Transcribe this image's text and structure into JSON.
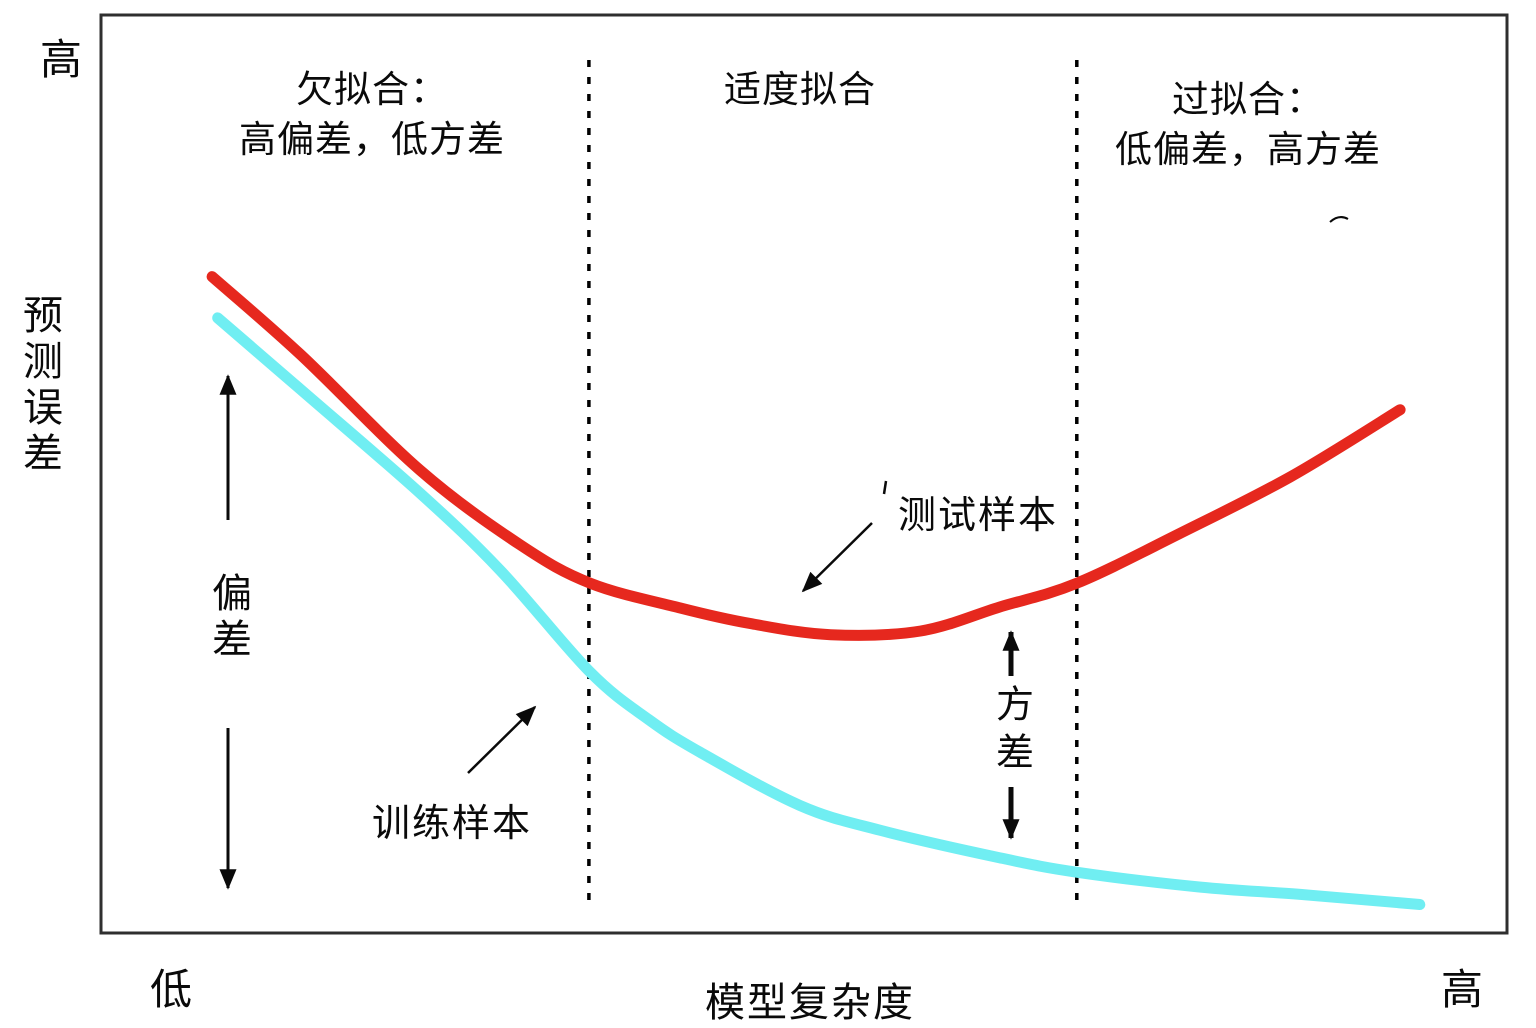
{
  "colors": {
    "ink": "#0a0a0a",
    "border": "#2f2f2f",
    "dashed_line": "#000000",
    "test_curve": "#e6281e",
    "train_curve": "#70eef2"
  },
  "chart_data": {
    "type": "line",
    "title": "",
    "xlabel": "模型复杂度",
    "ylabel": "预测误差",
    "x_range_labels": [
      "低",
      "高"
    ],
    "y_high_label": "高",
    "axis_ranges": {
      "x": [
        0,
        1
      ],
      "y": [
        0,
        1
      ]
    },
    "grid": false,
    "legend_position": "none",
    "region_boundaries_x": [
      0.347,
      0.694
    ],
    "regions": [
      {
        "lines": [
          "欠拟合：",
          "高偏差，低方差"
        ]
      },
      {
        "lines": [
          "适度拟合"
        ]
      },
      {
        "lines": [
          "过拟合：",
          "低偏差，高方差"
        ]
      }
    ],
    "annotations": {
      "bias": "偏差",
      "variance": "方差"
    },
    "series": [
      {
        "name": "测试样本",
        "color": "#e6281e",
        "points": [
          [
            0.079,
            0.715
          ],
          [
            0.142,
            0.63
          ],
          [
            0.227,
            0.504
          ],
          [
            0.298,
            0.423
          ],
          [
            0.348,
            0.381
          ],
          [
            0.412,
            0.354
          ],
          [
            0.462,
            0.337
          ],
          [
            0.519,
            0.325
          ],
          [
            0.583,
            0.329
          ],
          [
            0.639,
            0.355
          ],
          [
            0.694,
            0.381
          ],
          [
            0.767,
            0.435
          ],
          [
            0.846,
            0.497
          ],
          [
            0.924,
            0.57
          ]
        ]
      },
      {
        "name": "训练样本",
        "color": "#70eef2",
        "points": [
          [
            0.083,
            0.67
          ],
          [
            0.142,
            0.592
          ],
          [
            0.227,
            0.479
          ],
          [
            0.284,
            0.395
          ],
          [
            0.348,
            0.284
          ],
          [
            0.39,
            0.232
          ],
          [
            0.426,
            0.197
          ],
          [
            0.497,
            0.139
          ],
          [
            0.554,
            0.112
          ],
          [
            0.639,
            0.082
          ],
          [
            0.695,
            0.066
          ],
          [
            0.782,
            0.05
          ],
          [
            0.853,
            0.042
          ],
          [
            0.938,
            0.031
          ]
        ]
      }
    ]
  }
}
